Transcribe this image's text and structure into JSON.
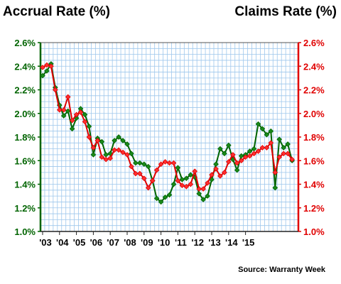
{
  "titles": {
    "left": "Accrual Rate (%)",
    "right": "Claims Rate (%)"
  },
  "source": "Source: Warranty Week",
  "colors": {
    "accrual": "#006400",
    "accrual_marker": "#1a8a1a",
    "claims": "#e00000",
    "claims_marker": "#ff3030",
    "grid": "#9ec7ec",
    "frame_left": "#006400",
    "frame_right": "#e00000"
  },
  "chart_data": {
    "type": "line",
    "title": "",
    "xlabel": "",
    "ylabel_left": "Accrual Rate (%)",
    "ylabel_right": "Claims Rate (%)",
    "ylim": [
      1.0,
      2.6
    ],
    "y_ticks": [
      "1.0%",
      "1.2%",
      "1.4%",
      "1.6%",
      "1.8%",
      "2.0%",
      "2.2%",
      "2.4%",
      "2.6%"
    ],
    "x_tick_labels": [
      "'03",
      "'04",
      "'05",
      "'06",
      "'07",
      "'08",
      "'09",
      "'10",
      "'11",
      "'12",
      "'13",
      "'14",
      "'15"
    ],
    "x_range": [
      "2003Q1",
      "2015Q4"
    ],
    "grid": true,
    "series": [
      {
        "name": "Accrual Rate (%)",
        "axis": "left",
        "values": [
          2.32,
          2.36,
          2.42,
          2.22,
          2.07,
          1.98,
          2.02,
          1.87,
          1.96,
          2.04,
          1.99,
          1.89,
          1.65,
          1.79,
          1.76,
          1.65,
          1.66,
          1.77,
          1.8,
          1.77,
          1.74,
          1.66,
          1.58,
          1.58,
          1.57,
          1.55,
          1.43,
          1.28,
          1.25,
          1.29,
          1.31,
          1.4,
          1.54,
          1.44,
          1.45,
          1.48,
          1.46,
          1.32,
          1.27,
          1.3,
          1.44,
          1.57,
          1.7,
          1.66,
          1.73,
          1.61,
          1.52,
          1.64,
          1.65,
          1.68,
          1.7,
          1.91,
          1.87,
          1.82,
          1.85,
          1.37,
          1.78,
          1.71,
          1.74,
          1.6
        ]
      },
      {
        "name": "Claims Rate (%)",
        "axis": "right",
        "values": [
          2.39,
          2.41,
          2.4,
          2.2,
          2.03,
          2.03,
          2.14,
          1.94,
          1.99,
          2.01,
          1.93,
          1.8,
          1.71,
          1.77,
          1.63,
          1.61,
          1.62,
          1.69,
          1.69,
          1.67,
          1.65,
          1.55,
          1.49,
          1.49,
          1.45,
          1.37,
          1.43,
          1.52,
          1.57,
          1.59,
          1.58,
          1.58,
          1.43,
          1.39,
          1.38,
          1.4,
          1.51,
          1.36,
          1.36,
          1.41,
          1.48,
          1.53,
          1.47,
          1.5,
          1.59,
          1.65,
          1.58,
          1.6,
          1.63,
          1.64,
          1.66,
          1.68,
          1.71,
          1.71,
          1.75,
          1.5,
          1.63,
          1.66,
          1.66,
          1.61
        ]
      }
    ]
  }
}
